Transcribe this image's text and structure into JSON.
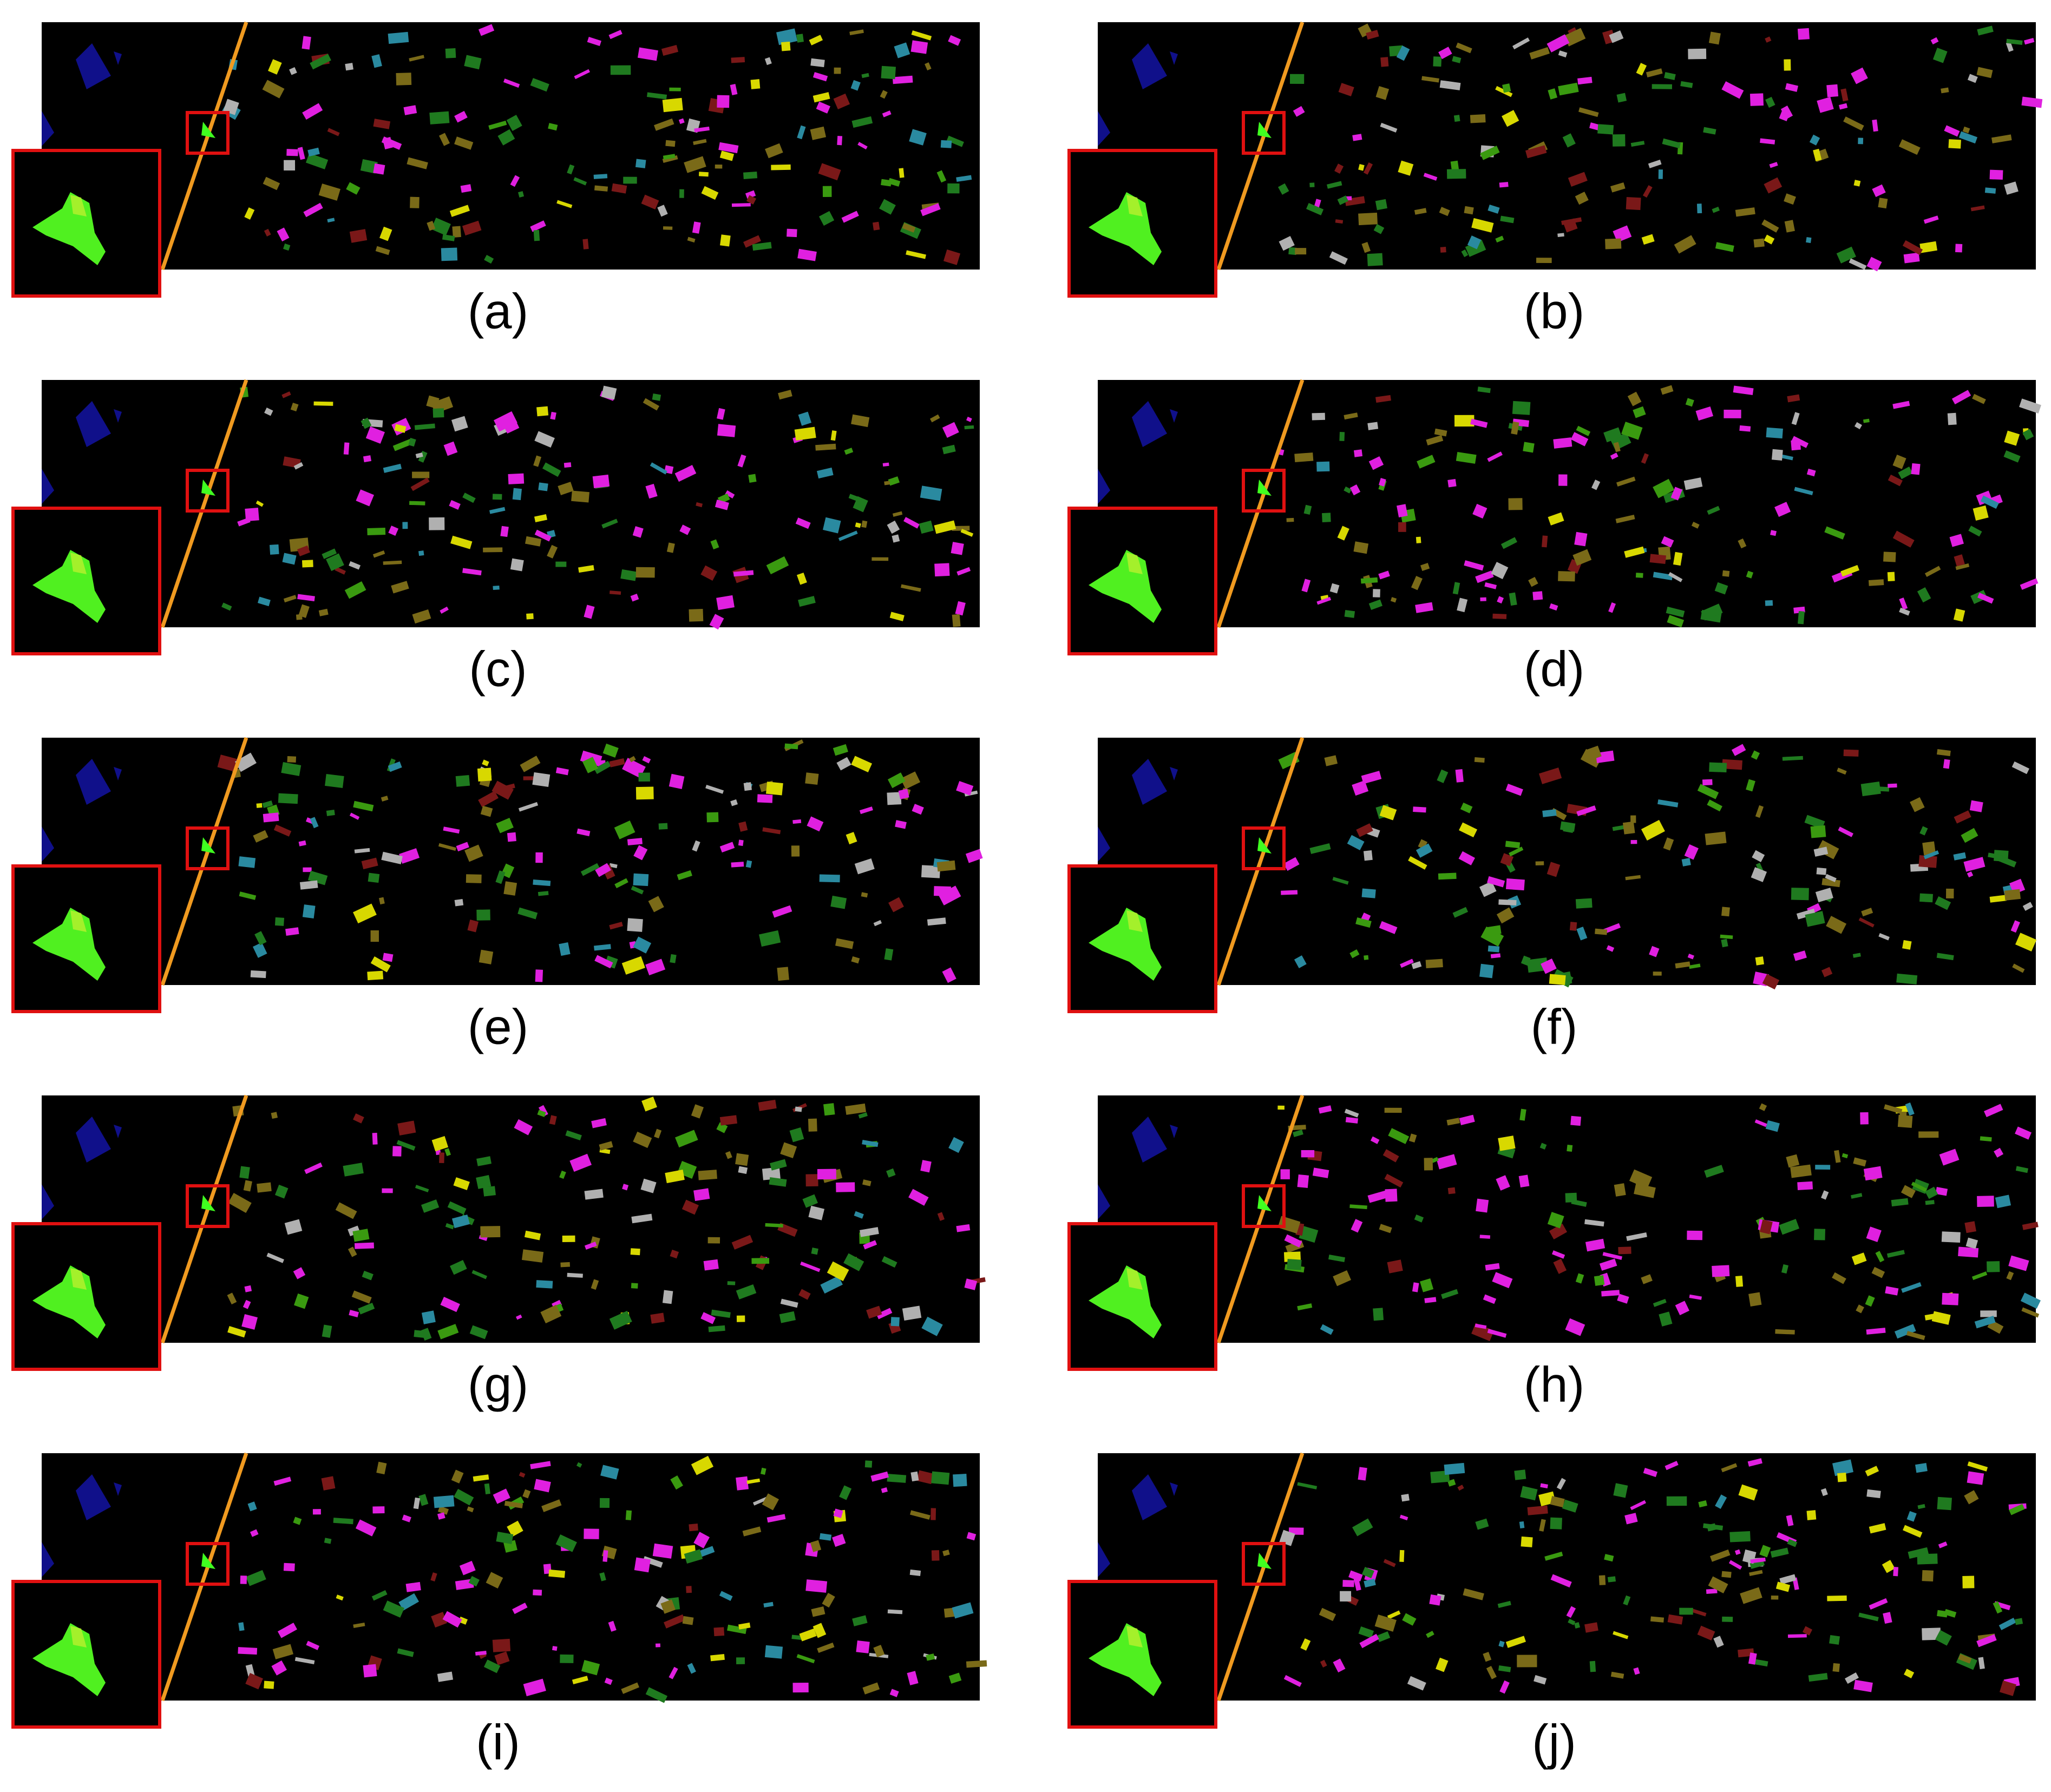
{
  "panels": [
    "(a)",
    "(b)",
    "(c)",
    "(d)",
    "(e)",
    "(f)",
    "(g)",
    "(h)",
    "(i)",
    "(j)"
  ]
}
